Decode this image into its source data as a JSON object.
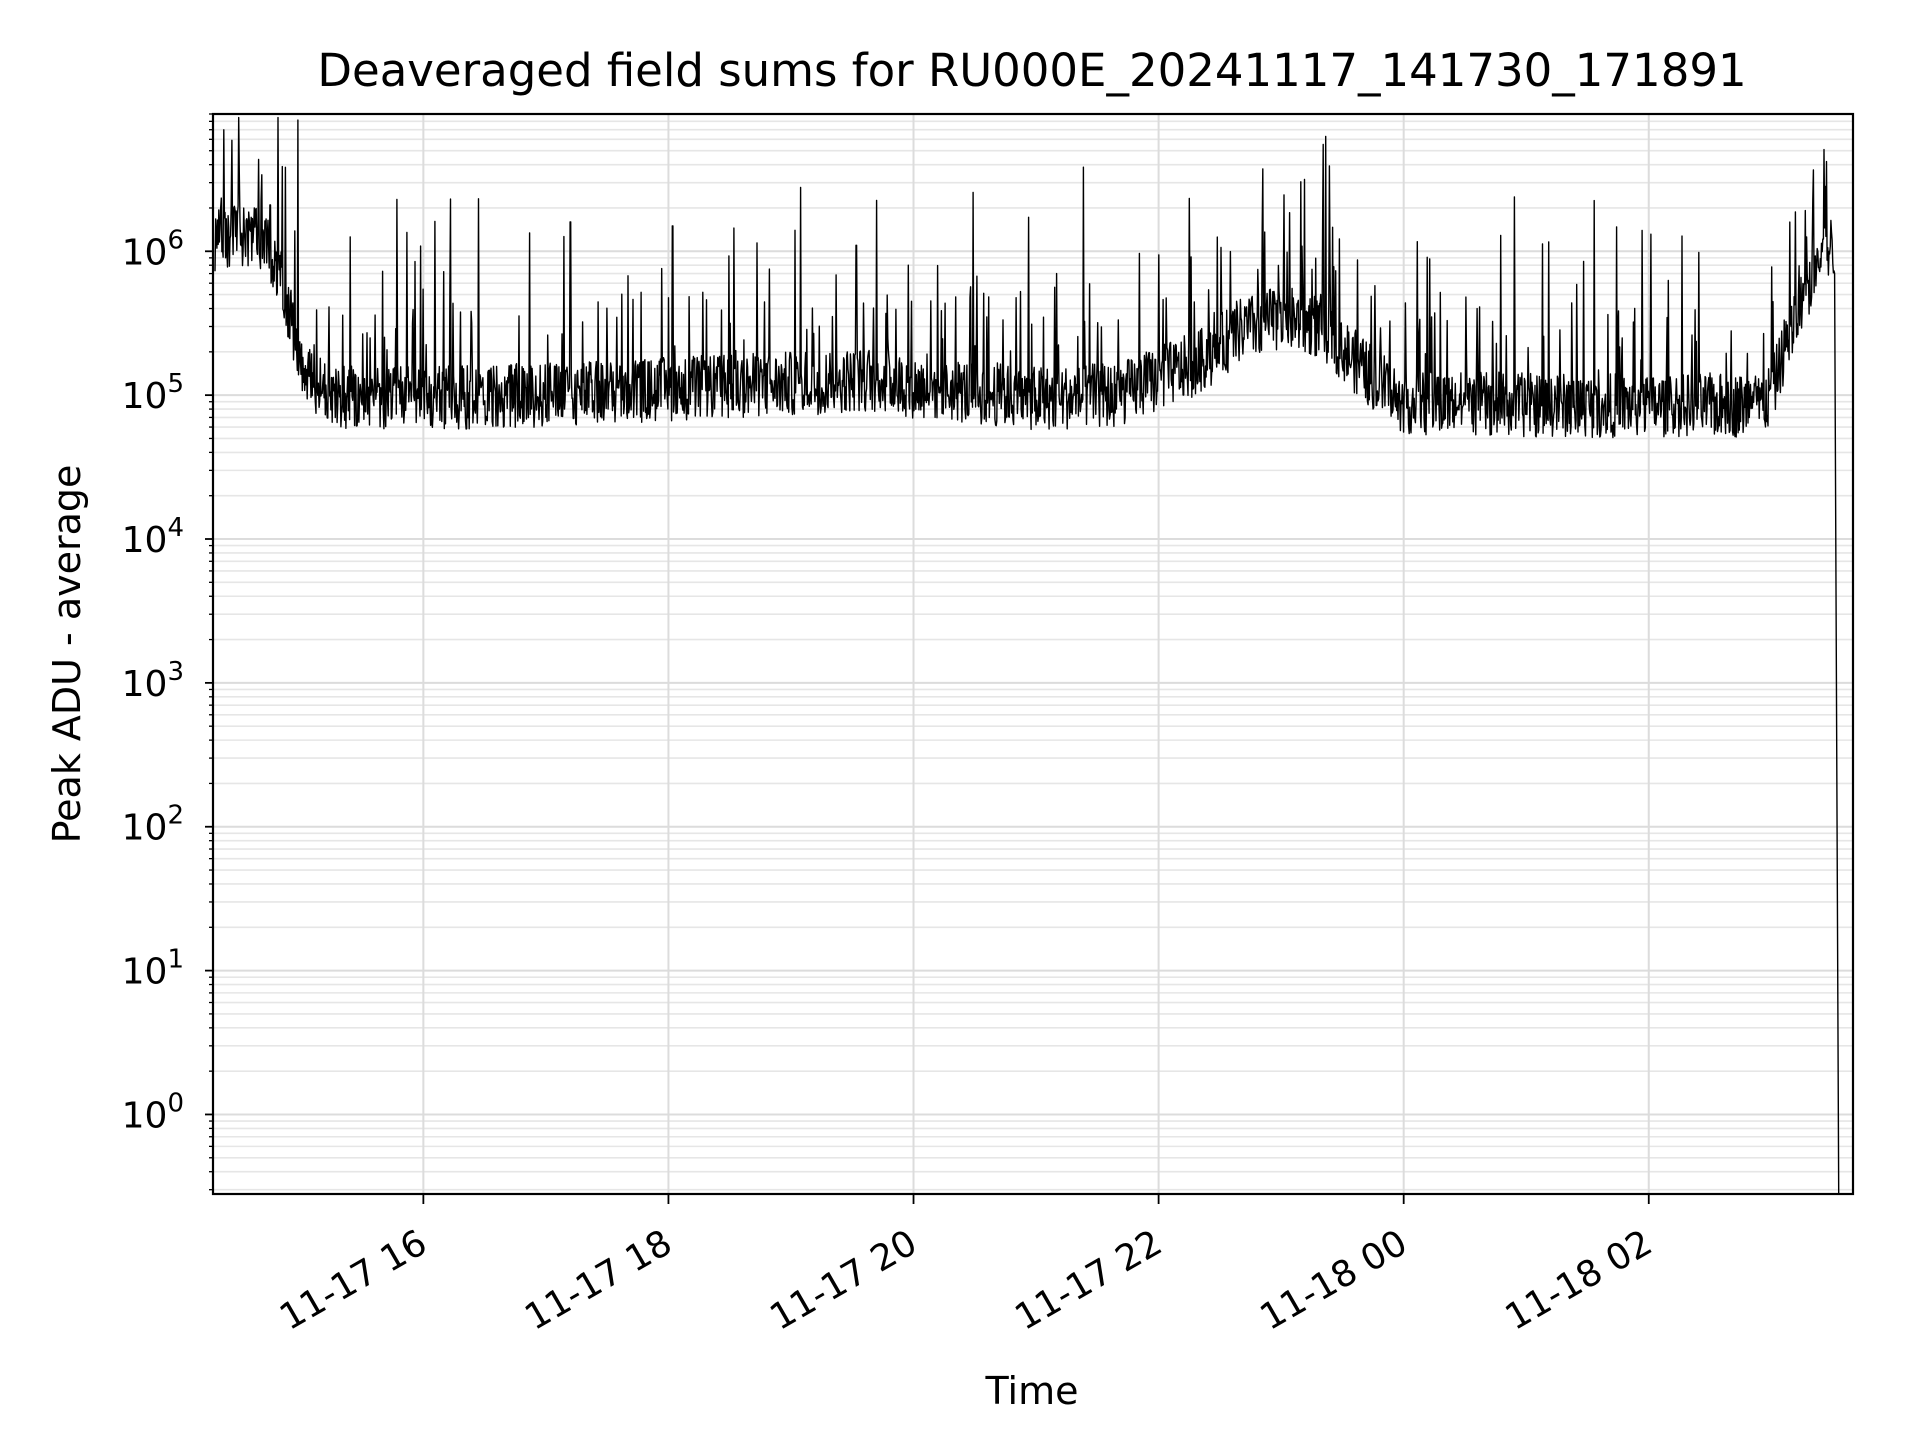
{
  "chart_data": {
    "type": "line",
    "title": "Deaveraged field sums for RU000E_20241117_141730_171891",
    "xlabel": "Time",
    "ylabel": "Peak ADU - average",
    "yscale": "log",
    "ylim": [
      0.28,
      9000000
    ],
    "xlim": [
      "2024-11-17 14:17",
      "2024-11-18 03:40"
    ],
    "grid": true,
    "x_ticks": [
      {
        "label": "11-17 16",
        "t": "2024-11-17 16:00"
      },
      {
        "label": "11-17 18",
        "t": "2024-11-17 18:00"
      },
      {
        "label": "11-17 20",
        "t": "2024-11-17 20:00"
      },
      {
        "label": "11-17 22",
        "t": "2024-11-17 22:00"
      },
      {
        "label": "11-18 00",
        "t": "2024-11-18 00:00"
      },
      {
        "label": "11-18 02",
        "t": "2024-11-18 02:00"
      }
    ],
    "y_ticks": [
      {
        "base": "10",
        "exp": "0",
        "value": 1
      },
      {
        "base": "10",
        "exp": "1",
        "value": 10
      },
      {
        "base": "10",
        "exp": "2",
        "value": 100
      },
      {
        "base": "10",
        "exp": "3",
        "value": 1000
      },
      {
        "base": "10",
        "exp": "4",
        "value": 10000
      },
      {
        "base": "10",
        "exp": "5",
        "value": 100000
      },
      {
        "base": "10",
        "exp": "6",
        "value": 1000000
      }
    ],
    "line_color": "#000000",
    "series": [
      {
        "baseline": [
          [
            "2024-11-17 14:18",
            1200000
          ],
          [
            "2024-11-17 14:30",
            1350000
          ],
          [
            "2024-11-17 14:40",
            1200000
          ],
          [
            "2024-11-17 14:48",
            800000
          ],
          [
            "2024-11-17 14:54",
            400000
          ],
          [
            "2024-11-17 15:00",
            180000
          ],
          [
            "2024-11-17 15:08",
            110000
          ],
          [
            "2024-11-17 15:20",
            95000
          ],
          [
            "2024-11-17 16:00",
            95000
          ],
          [
            "2024-11-17 17:00",
            100000
          ],
          [
            "2024-11-17 18:00",
            110000
          ],
          [
            "2024-11-17 19:00",
            120000
          ],
          [
            "2024-11-17 19:40",
            130000
          ],
          [
            "2024-11-17 20:00",
            115000
          ],
          [
            "2024-11-17 21:00",
            95000
          ],
          [
            "2024-11-17 21:40",
            100000
          ],
          [
            "2024-11-17 22:20",
            170000
          ],
          [
            "2024-11-17 22:40",
            280000
          ],
          [
            "2024-11-17 23:00",
            350000
          ],
          [
            "2024-11-17 23:20",
            300000
          ],
          [
            "2024-11-17 23:40",
            150000
          ],
          [
            "2024-11-18 00:00",
            90000
          ],
          [
            "2024-11-18 01:00",
            85000
          ],
          [
            "2024-11-18 02:00",
            85000
          ],
          [
            "2024-11-18 02:55",
            85000
          ],
          [
            "2024-11-18 03:00",
            100000
          ],
          [
            "2024-11-18 03:06",
            200000
          ],
          [
            "2024-11-18 03:14",
            400000
          ],
          [
            "2024-11-18 03:22",
            800000
          ],
          [
            "2024-11-18 03:28",
            1100000
          ],
          [
            "2024-11-18 03:31",
            1000000
          ],
          [
            "2024-11-18 03:33",
            0.28
          ]
        ],
        "spikes": [
          [
            "2024-11-17 14:30",
            3500000
          ],
          [
            "2024-11-17 14:45",
            2100000
          ],
          [
            "2024-11-17 15:52",
            1350000
          ],
          [
            "2024-11-17 17:12",
            1600000
          ],
          [
            "2024-11-17 18:02",
            1500000
          ],
          [
            "2024-11-17 18:32",
            1450000
          ],
          [
            "2024-11-17 19:02",
            1400000
          ],
          [
            "2024-11-17 19:32",
            1100000
          ],
          [
            "2024-11-17 21:10",
            700000
          ],
          [
            "2024-11-17 23:15",
            750000
          ],
          [
            "2024-11-18 01:28",
            850000
          ],
          [
            "2024-11-18 03:27",
            4200000
          ]
        ]
      }
    ]
  }
}
